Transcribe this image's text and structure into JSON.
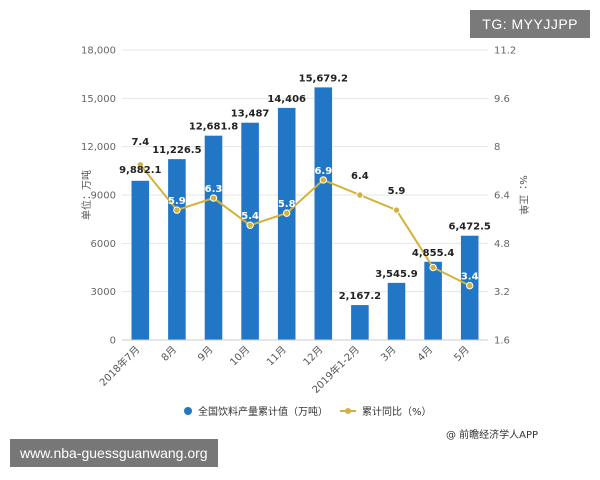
{
  "overlay": {
    "tag": "TG: MYYJJPP",
    "url": "www.nba-guessguanwang.org",
    "source": "@ 前瞻经济学人APP"
  },
  "colors": {
    "bar": "#2176c6",
    "line": "#d4b23a",
    "grid": "#e6e6e6"
  },
  "chart_data": {
    "type": "bar",
    "categories": [
      "2018年7月",
      "8月",
      "9月",
      "10月",
      "11月",
      "12月",
      "2019年1-2月",
      "3月",
      "4月",
      "5月"
    ],
    "series": [
      {
        "name": "全国饮料产量累计值（万吨）",
        "type": "bar",
        "axis": "left",
        "values": [
          9882.1,
          11226.5,
          12681.8,
          13487,
          14406,
          15679.2,
          2167.2,
          3545.9,
          4855.4,
          6472.5
        ],
        "labels": [
          "9,882.1",
          "11,226.5",
          "12,681.8",
          "13,487",
          "14,406",
          "15,679.2",
          "2,167.2",
          "3,545.9",
          "4,855.4",
          "6,472.5"
        ]
      },
      {
        "name": "累计同比（%）",
        "type": "line",
        "axis": "right",
        "values": [
          7.4,
          5.9,
          6.3,
          5.4,
          5.8,
          6.9,
          6.4,
          5.9,
          4.0,
          3.4
        ],
        "labels": [
          "7.4",
          "5.9",
          "6.3",
          "5.4",
          "5.8",
          "6.9",
          "6.4",
          "5.9",
          "",
          "3.4"
        ]
      }
    ],
    "ylabel": "单位：万吨",
    "ylabel_right": "%：正单",
    "ylim": [
      0,
      18000
    ],
    "ylim_right": [
      1.6,
      11.2
    ],
    "yticks_left": [
      "0",
      "3000",
      "6000",
      "9000",
      "12,000",
      "15,000",
      "18,000"
    ],
    "yticks_right": [
      "1.6",
      "3.2",
      "4.8",
      "6.4",
      "8",
      "9.6",
      "11.2"
    ],
    "grid": true,
    "legend_position": "bottom"
  }
}
